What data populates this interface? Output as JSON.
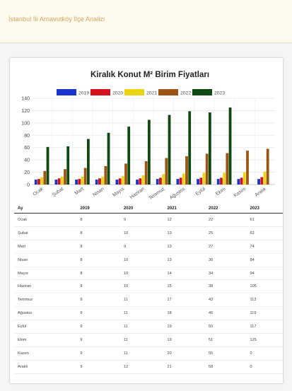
{
  "header": {
    "title": "İstanbul İli Arnavutköy İlçe Analizi"
  },
  "chart_data": {
    "type": "bar",
    "title": "Kiralık Konut M² Birim Fiyatları",
    "categories": [
      "Ocak",
      "Şubat",
      "Mart",
      "Nisan",
      "Mayıs",
      "Haziran",
      "Temmuz",
      "Ağustos",
      "Eylül",
      "Ekim",
      "Kasım",
      "Aralık"
    ],
    "series": [
      {
        "name": "2019",
        "color": "#1a35c9",
        "values": [
          8,
          8,
          8,
          8,
          8,
          8,
          9,
          9,
          9,
          9,
          9,
          9
        ]
      },
      {
        "name": "2020",
        "color": "#d4121b",
        "values": [
          9,
          10,
          9,
          10,
          10,
          10,
          11,
          11,
          11,
          11,
          11,
          12
        ]
      },
      {
        "name": "2021",
        "color": "#ebd416",
        "values": [
          12,
          13,
          13,
          13,
          14,
          15,
          17,
          18,
          19,
          19,
          20,
          21
        ]
      },
      {
        "name": "2022",
        "color": "#9c5515",
        "values": [
          22,
          25,
          27,
          30,
          34,
          38,
          43,
          46,
          50,
          51,
          55,
          58
        ]
      },
      {
        "name": "2023",
        "color": "#0e4a12",
        "values": [
          61,
          62,
          74,
          84,
          94,
          105,
          113,
          119,
          117,
          125,
          0,
          0
        ]
      }
    ],
    "ylim": [
      0,
      140
    ],
    "yticks": [
      0,
      20,
      40,
      60,
      80,
      100,
      120,
      140
    ],
    "grid": true,
    "legend_position": "top"
  },
  "table": {
    "columns": [
      "Ay",
      "2019",
      "2020",
      "2021",
      "2022",
      "2023"
    ],
    "rows": [
      [
        "Ocak",
        "8",
        "9",
        "12",
        "22",
        "61"
      ],
      [
        "Şubat",
        "8",
        "10",
        "13",
        "25",
        "62"
      ],
      [
        "Mart",
        "8",
        "9",
        "13",
        "27",
        "74"
      ],
      [
        "Nisan",
        "8",
        "10",
        "13",
        "30",
        "84"
      ],
      [
        "Mayıs",
        "8",
        "10",
        "14",
        "34",
        "94"
      ],
      [
        "Haziran",
        "8",
        "10",
        "15",
        "38",
        "105"
      ],
      [
        "Temmuz",
        "9",
        "11",
        "17",
        "43",
        "113"
      ],
      [
        "Ağustos",
        "9",
        "11",
        "18",
        "46",
        "119"
      ],
      [
        "Eylül",
        "9",
        "11",
        "19",
        "50",
        "117"
      ],
      [
        "Ekim",
        "9",
        "11",
        "19",
        "51",
        "125"
      ],
      [
        "Kasım",
        "9",
        "11",
        "20",
        "55",
        "0"
      ],
      [
        "Aralık",
        "9",
        "12",
        "21",
        "58",
        "0"
      ]
    ]
  }
}
